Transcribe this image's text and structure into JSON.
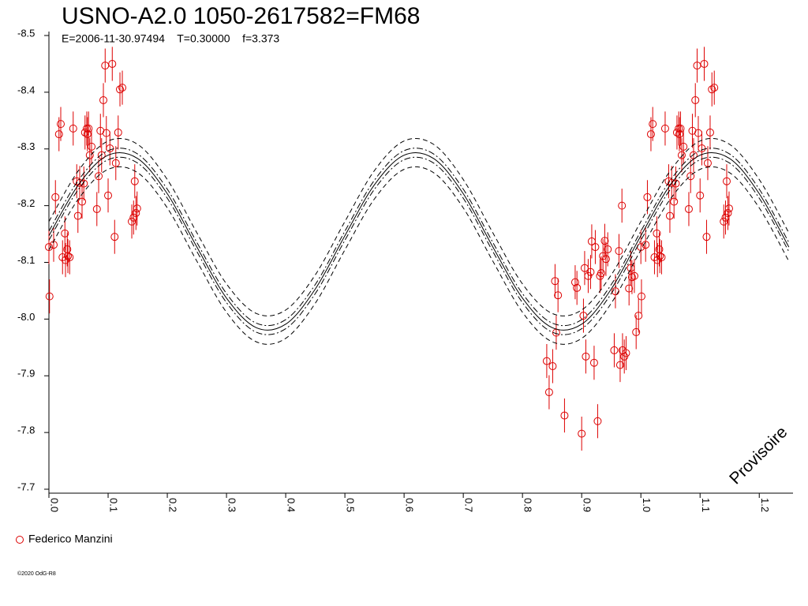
{
  "chart_data": {
    "type": "scatter",
    "title": "USNO-A2.0 1050-2617582=FM68",
    "subtitle": "E=2006-11-30.97494    T=0.30000    f=3.373",
    "watermark": "Provisoire",
    "footer": "©2020 OdG-R8",
    "xlim": [
      0,
      1.257
    ],
    "ylim": [
      -8.5,
      -7.7
    ],
    "y_inverted": true,
    "xticks": [
      {
        "value": 0,
        "label": "0.0"
      },
      0.1,
      0.2,
      0.3,
      0.4,
      0.5,
      0.6,
      0.7,
      0.8,
      0.9,
      {
        "value": 1,
        "label": "1.0"
      },
      1.1,
      1.2
    ],
    "yticks": [
      -8.5,
      -8.4,
      -8.3,
      -8.2,
      -8.1,
      {
        "value": -8,
        "label": "-8.0"
      },
      -7.9,
      -7.8,
      -7.7
    ],
    "legend": "bottom-left",
    "series": [
      {
        "name": "Federico Manzini",
        "type": "points",
        "color": "#dd0000",
        "error": 0.03,
        "x": [
          0.0,
          0.001,
          0.008,
          0.011,
          0.017,
          0.02,
          0.023,
          0.027,
          0.028,
          0.031,
          0.032,
          0.035,
          0.041,
          0.047,
          0.049,
          0.052,
          0.056,
          0.059,
          0.061,
          0.064,
          0.065,
          0.067,
          0.069,
          0.072,
          0.081,
          0.084,
          0.087,
          0.089,
          0.092,
          0.095,
          0.097,
          0.1,
          0.103,
          0.107,
          0.111,
          0.113,
          0.117,
          0.12,
          0.124,
          0.14,
          0.143,
          0.145,
          0.147,
          0.149,
          0.841,
          0.845,
          0.851,
          0.855,
          0.857,
          0.86,
          0.871,
          0.889,
          0.892,
          0.9,
          0.903,
          0.905,
          0.907,
          0.911,
          0.915,
          0.917,
          0.921,
          0.923,
          0.927,
          0.931,
          0.933,
          0.936,
          0.939,
          0.941,
          0.944,
          0.955,
          0.957,
          0.963,
          0.965,
          0.968,
          0.969,
          0.972,
          0.975,
          0.98,
          0.983,
          0.985,
          0.989,
          0.992,
          0.996,
          1.0,
          1.001,
          1.008,
          1.011,
          1.017,
          1.02,
          1.023,
          1.027,
          1.028,
          1.031,
          1.032,
          1.035,
          1.041,
          1.047,
          1.049,
          1.052,
          1.056,
          1.059,
          1.061,
          1.064,
          1.065,
          1.067,
          1.069,
          1.072,
          1.081,
          1.084,
          1.087,
          1.089,
          1.092,
          1.095,
          1.097,
          1.1,
          1.103,
          1.107,
          1.111,
          1.113,
          1.117,
          1.12,
          1.124,
          1.14,
          1.143,
          1.145,
          1.147,
          1.149
        ],
        "values": [
          -8.127,
          -8.04,
          -8.131,
          -8.215,
          -8.326,
          -8.344,
          -8.109,
          -8.151,
          -8.104,
          -8.123,
          -8.111,
          -8.109,
          -8.336,
          -8.243,
          -8.182,
          -8.24,
          -8.207,
          -8.239,
          -8.329,
          -8.336,
          -8.326,
          -8.336,
          -8.289,
          -8.304,
          -8.194,
          -8.252,
          -8.332,
          -8.289,
          -8.386,
          -8.447,
          -8.328,
          -8.218,
          -8.301,
          -8.45,
          -8.145,
          -8.275,
          -8.329,
          -8.405,
          -8.408,
          -8.172,
          -8.179,
          -8.243,
          -8.187,
          -8.195,
          -7.926,
          -7.871,
          -7.917,
          -8.067,
          -7.976,
          -8.042,
          -7.83,
          -8.065,
          -8.055,
          -7.798,
          -8.006,
          -8.09,
          -7.934,
          -8.076,
          -8.083,
          -8.137,
          -7.923,
          -8.127,
          -7.82,
          -8.076,
          -8.081,
          -8.111,
          -8.138,
          -8.106,
          -8.123,
          -7.945,
          -8.049,
          -8.12,
          -7.919,
          -8.2,
          -7.945,
          -7.934,
          -7.94,
          -8.054,
          -8.09,
          -8.074,
          -8.076,
          -7.977,
          -8.006,
          -8.127,
          -8.04,
          -8.131,
          -8.215,
          -8.326,
          -8.344,
          -8.109,
          -8.151,
          -8.104,
          -8.123,
          -8.111,
          -8.109,
          -8.336,
          -8.243,
          -8.182,
          -8.24,
          -8.207,
          -8.239,
          -8.329,
          -8.336,
          -8.326,
          -8.336,
          -8.289,
          -8.304,
          -8.194,
          -8.252,
          -8.332,
          -8.289,
          -8.386,
          -8.447,
          -8.328,
          -8.218,
          -8.301,
          -8.45,
          -8.145,
          -8.275,
          -8.329,
          -8.405,
          -8.408,
          -8.172,
          -8.179,
          -8.243,
          -8.187,
          -8.195
        ]
      },
      {
        "type": "line",
        "color": "#000000",
        "dash": "solid",
        "x": [
          0,
          0.05,
          0.1,
          0.15,
          0.2,
          0.25,
          0.3,
          0.35,
          0.4,
          0.45,
          0.5,
          0.55,
          0.6,
          0.65,
          0.7,
          0.75,
          0.8,
          0.85,
          0.9,
          0.95,
          1,
          1.05,
          1.1,
          1.15,
          1.2,
          1.25
        ],
        "values": [
          -8.147,
          -8.237,
          -8.289,
          -8.283,
          -8.221,
          -8.127,
          -8.037,
          -7.985,
          -7.991,
          -8.053,
          -8.147,
          -8.237,
          -8.289,
          -8.283,
          -8.221,
          -8.127,
          -8.037,
          -7.985,
          -7.991,
          -8.053,
          -8.147,
          -8.237,
          -8.289,
          -8.283,
          -8.221,
          -8.127
        ]
      },
      {
        "type": "line",
        "color": "#000000",
        "dash": "dashdot",
        "x": [
          0,
          0.05,
          0.1,
          0.15,
          0.2,
          0.25,
          0.3,
          0.35,
          0.4,
          0.45,
          0.5,
          0.55,
          0.6,
          0.65,
          0.7,
          0.75,
          0.8,
          0.85,
          0.9,
          0.95,
          1,
          1.05,
          1.1,
          1.15,
          1.2,
          1.25
        ],
        "values": [
          -8.155,
          -8.245,
          -8.297,
          -8.291,
          -8.229,
          -8.135,
          -8.045,
          -7.993,
          -7.999,
          -8.061,
          -8.155,
          -8.245,
          -8.297,
          -8.291,
          -8.229,
          -8.135,
          -8.045,
          -7.993,
          -7.999,
          -8.061,
          -8.155,
          -8.245,
          -8.297,
          -8.291,
          -8.229,
          -8.135
        ]
      },
      {
        "type": "line",
        "color": "#000000",
        "dash": "dashdot",
        "x": [
          0,
          0.05,
          0.1,
          0.15,
          0.2,
          0.25,
          0.3,
          0.35,
          0.4,
          0.45,
          0.5,
          0.55,
          0.6,
          0.65,
          0.7,
          0.75,
          0.8,
          0.85,
          0.9,
          0.95,
          1,
          1.05,
          1.1,
          1.15,
          1.2,
          1.25
        ],
        "values": [
          -8.139,
          -8.229,
          -8.281,
          -8.275,
          -8.213,
          -8.119,
          -8.029,
          -7.977,
          -7.983,
          -8.045,
          -8.139,
          -8.229,
          -8.281,
          -8.275,
          -8.213,
          -8.119,
          -8.029,
          -7.977,
          -7.983,
          -8.045,
          -8.139,
          -8.229,
          -8.281,
          -8.275,
          -8.213,
          -8.119
        ]
      },
      {
        "type": "line",
        "color": "#000000",
        "dash": "dashed",
        "x": [
          0,
          0.05,
          0.1,
          0.15,
          0.2,
          0.25,
          0.3,
          0.35,
          0.4,
          0.45,
          0.5,
          0.55,
          0.6,
          0.65,
          0.7,
          0.75,
          0.8,
          0.85,
          0.9,
          0.95,
          1,
          1.05,
          1.1,
          1.15,
          1.2,
          1.25
        ],
        "values": [
          -8.172,
          -8.262,
          -8.314,
          -8.308,
          -8.246,
          -8.152,
          -8.062,
          -8.01,
          -8.016,
          -8.078,
          -8.172,
          -8.262,
          -8.314,
          -8.308,
          -8.246,
          -8.152,
          -8.062,
          -8.01,
          -8.016,
          -8.078,
          -8.172,
          -8.262,
          -8.314,
          -8.308,
          -8.246,
          -8.152
        ]
      },
      {
        "type": "line",
        "color": "#000000",
        "dash": "dashed",
        "x": [
          0,
          0.05,
          0.1,
          0.15,
          0.2,
          0.25,
          0.3,
          0.35,
          0.4,
          0.45,
          0.5,
          0.55,
          0.6,
          0.65,
          0.7,
          0.75,
          0.8,
          0.85,
          0.9,
          0.95,
          1,
          1.05,
          1.1,
          1.15,
          1.2,
          1.25
        ],
        "values": [
          -8.122,
          -8.212,
          -8.264,
          -8.258,
          -8.196,
          -8.102,
          -8.012,
          -7.96,
          -7.966,
          -8.028,
          -8.122,
          -8.212,
          -8.264,
          -8.258,
          -8.196,
          -8.102,
          -8.012,
          -7.96,
          -7.966,
          -8.028,
          -8.122,
          -8.212,
          -8.264,
          -8.258,
          -8.196,
          -8.102
        ]
      }
    ]
  }
}
